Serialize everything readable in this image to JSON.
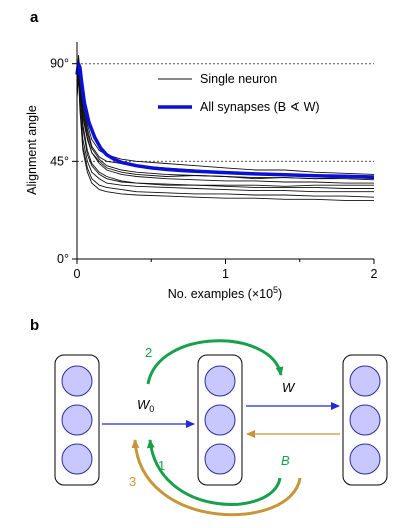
{
  "panels": {
    "a": "a",
    "b": "b"
  },
  "chart_data": {
    "type": "line",
    "title": "",
    "xlabel_prefix": "No. examples (×10",
    "xlabel_exp": "5",
    "xlabel_suffix": ")",
    "ylabel": "Alignment angle",
    "xlim": [
      0,
      2
    ],
    "ylim": [
      0,
      100
    ],
    "x_ticks": [
      0,
      1,
      2
    ],
    "x_tick_labels": [
      "0",
      "1",
      "2"
    ],
    "y_ticks": [
      0,
      45,
      90
    ],
    "y_tick_labels": [
      "0°",
      "45°",
      "90°"
    ],
    "reference_lines": [
      90,
      45
    ],
    "legend": {
      "position": "top-right",
      "single_label": "Single neuron",
      "all_label": "All synapses (B ∢ W)"
    },
    "colors": {
      "single": "#111111",
      "all": "#0a10d8",
      "ref": "#555555"
    },
    "series": [
      {
        "name": "All synapses (B ∢ W)",
        "x": [
          0,
          0.01,
          0.02,
          0.03,
          0.05,
          0.08,
          0.12,
          0.16,
          0.2,
          0.25,
          0.3,
          0.4,
          0.5,
          0.6,
          0.7,
          0.8,
          1.0,
          1.2,
          1.4,
          1.6,
          1.8,
          2.0
        ],
        "y": [
          85,
          90,
          88,
          82,
          72,
          63,
          56,
          51,
          48,
          46,
          44.5,
          43,
          42,
          41.3,
          40.8,
          40.4,
          39.8,
          39.2,
          38.8,
          38.4,
          38.1,
          37.8
        ]
      },
      {
        "x": [
          0,
          0.01,
          0.02,
          0.04,
          0.07,
          0.1,
          0.15,
          0.2,
          0.3,
          0.4,
          0.6,
          0.8,
          1.0,
          1.2,
          1.4,
          1.6,
          1.8,
          2.0
        ],
        "y": [
          80,
          92,
          85,
          70,
          60,
          52,
          47,
          45,
          44,
          43,
          42,
          41,
          40,
          39.5,
          39,
          38.5,
          38,
          37.5
        ]
      },
      {
        "x": [
          0,
          0.01,
          0.02,
          0.04,
          0.07,
          0.1,
          0.15,
          0.2,
          0.3,
          0.4,
          0.6,
          0.8,
          1.0,
          1.2,
          1.4,
          1.6,
          1.8,
          2.0
        ],
        "y": [
          78,
          88,
          80,
          65,
          55,
          49,
          45,
          42,
          40,
          39,
          38,
          38.5,
          38,
          37,
          37.5,
          37,
          37.5,
          37
        ]
      },
      {
        "x": [
          0,
          0.01,
          0.02,
          0.04,
          0.07,
          0.1,
          0.15,
          0.2,
          0.3,
          0.4,
          0.6,
          0.8,
          1.0,
          1.2,
          1.4,
          1.6,
          1.8,
          2.0
        ],
        "y": [
          82,
          94,
          86,
          72,
          62,
          55,
          50,
          48,
          46,
          45,
          44,
          43,
          42,
          41,
          41,
          40,
          39.5,
          39
        ]
      },
      {
        "x": [
          0,
          0.01,
          0.02,
          0.04,
          0.07,
          0.1,
          0.15,
          0.2,
          0.3,
          0.4,
          0.6,
          0.8,
          1.0,
          1.2,
          1.4,
          1.6,
          1.8,
          2.0
        ],
        "y": [
          75,
          85,
          70,
          52,
          42,
          37,
          34,
          33,
          32,
          31,
          30.5,
          30,
          30,
          29.5,
          29.5,
          29,
          29,
          28.5
        ]
      },
      {
        "x": [
          0,
          0.01,
          0.02,
          0.04,
          0.07,
          0.1,
          0.15,
          0.2,
          0.3,
          0.4,
          0.6,
          0.8,
          1.0,
          1.2,
          1.4,
          1.6,
          1.8,
          2.0
        ],
        "y": [
          76,
          86,
          72,
          55,
          45,
          40,
          37,
          35,
          34,
          33.5,
          33,
          32.5,
          32,
          31.5,
          31.5,
          31,
          31,
          31
        ]
      },
      {
        "x": [
          0,
          0.01,
          0.02,
          0.04,
          0.07,
          0.1,
          0.15,
          0.2,
          0.3,
          0.4,
          0.6,
          0.8,
          1.0,
          1.2,
          1.4,
          1.6,
          1.8,
          2.0
        ],
        "y": [
          79,
          90,
          78,
          62,
          50,
          44,
          40,
          38,
          36,
          35,
          34,
          34,
          33.5,
          33,
          33,
          33,
          32.5,
          32.5
        ]
      },
      {
        "x": [
          0,
          0.01,
          0.02,
          0.04,
          0.07,
          0.1,
          0.15,
          0.2,
          0.3,
          0.4,
          0.6,
          0.8,
          1.0,
          1.2,
          1.4,
          1.6,
          1.8,
          2.0
        ],
        "y": [
          77,
          89,
          76,
          60,
          48,
          43,
          39,
          37,
          35.5,
          35,
          34.5,
          34,
          34,
          34,
          33.5,
          34,
          34,
          34
        ]
      },
      {
        "x": [
          0,
          0.01,
          0.02,
          0.04,
          0.07,
          0.1,
          0.15,
          0.2,
          0.3,
          0.4,
          0.6,
          0.8,
          1.0,
          1.2,
          1.4,
          1.6,
          1.8,
          2.0
        ],
        "y": [
          80,
          91,
          82,
          67,
          56,
          49,
          44,
          41,
          39,
          38,
          37,
          36.5,
          36,
          36,
          35.5,
          35.5,
          35,
          35
        ]
      },
      {
        "x": [
          0,
          0.01,
          0.02,
          0.04,
          0.07,
          0.1,
          0.15,
          0.2,
          0.3,
          0.4,
          0.6,
          0.8,
          1.0,
          1.2,
          1.4,
          1.6,
          1.8,
          2.0
        ],
        "y": [
          74,
          84,
          68,
          50,
          40,
          35,
          32,
          31,
          30,
          29.5,
          29,
          28.5,
          28,
          28,
          27.5,
          27.5,
          27,
          27
        ]
      },
      {
        "x": [
          0,
          0.01,
          0.02,
          0.04,
          0.07,
          0.1,
          0.15,
          0.2,
          0.3,
          0.4,
          0.6,
          0.8,
          1.0,
          1.2,
          1.4,
          1.6,
          1.8,
          2.0
        ],
        "y": [
          81,
          93,
          84,
          69,
          58,
          51,
          46,
          43,
          41,
          40,
          39,
          38.5,
          38,
          37.5,
          37.5,
          37,
          37,
          36.5
        ]
      }
    ]
  },
  "diagram": {
    "colors": {
      "forward": "#1f2bd6",
      "feedback": "#c8963a",
      "step12": "#19a04a",
      "node_fill": "#c8c8ff",
      "node_stroke": "#2a2f9a"
    },
    "labels": {
      "w0": "W",
      "w0_sub": "0",
      "w": "W",
      "b": "B",
      "step1": "1",
      "step2": "2",
      "step3": "3"
    }
  }
}
